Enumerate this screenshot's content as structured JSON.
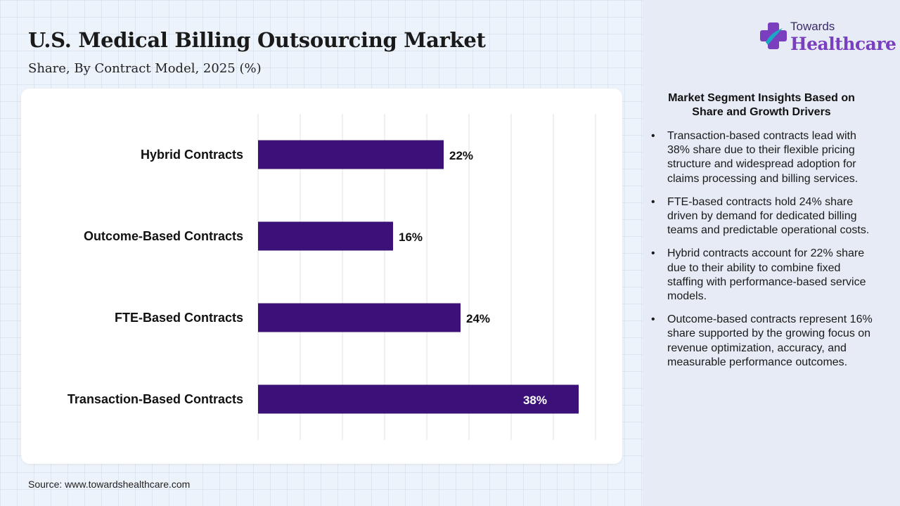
{
  "header": {
    "title": "U.S. Medical Billing Outsourcing Market",
    "subtitle": "Share, By Contract Model, 2025 (%)"
  },
  "logo": {
    "line1": "Towards",
    "line2": "Healthcare",
    "colors": {
      "teal": "#1aa9c4",
      "purple": "#7a3fbf"
    }
  },
  "chart_data": {
    "type": "bar",
    "orientation": "horizontal",
    "categories": [
      "Hybrid Contracts",
      "Outcome-Based Contracts",
      "FTE-Based Contracts",
      "Transaction-Based Contracts"
    ],
    "values": [
      22,
      16,
      24,
      38
    ],
    "data_labels": [
      "22%",
      "16%",
      "24%",
      "38%"
    ],
    "xlim": [
      0,
      40
    ],
    "grid": true,
    "x_tick_labels_shown": false,
    "bar_color": "#3b1078",
    "label_color": "#111111",
    "inside_label_color": "#ffffff"
  },
  "insights": {
    "heading": "Market Segment Insights Based on Share and Growth Drivers",
    "bullet": "•",
    "items": [
      "Transaction-based contracts lead with 38% share due to their flexible pricing structure and widespread adoption for claims processing and billing services.",
      "FTE-based contracts hold 24% share driven by demand for dedicated billing teams and predictable operational costs.",
      "Hybrid contracts account for 22% share due to their ability to combine fixed staffing with performance-based service models.",
      "Outcome-based contracts represent 16% share supported by the growing focus on revenue optimization, accuracy, and measurable performance outcomes."
    ]
  },
  "footer": {
    "source": "Source: www.towardshealthcare.com"
  }
}
